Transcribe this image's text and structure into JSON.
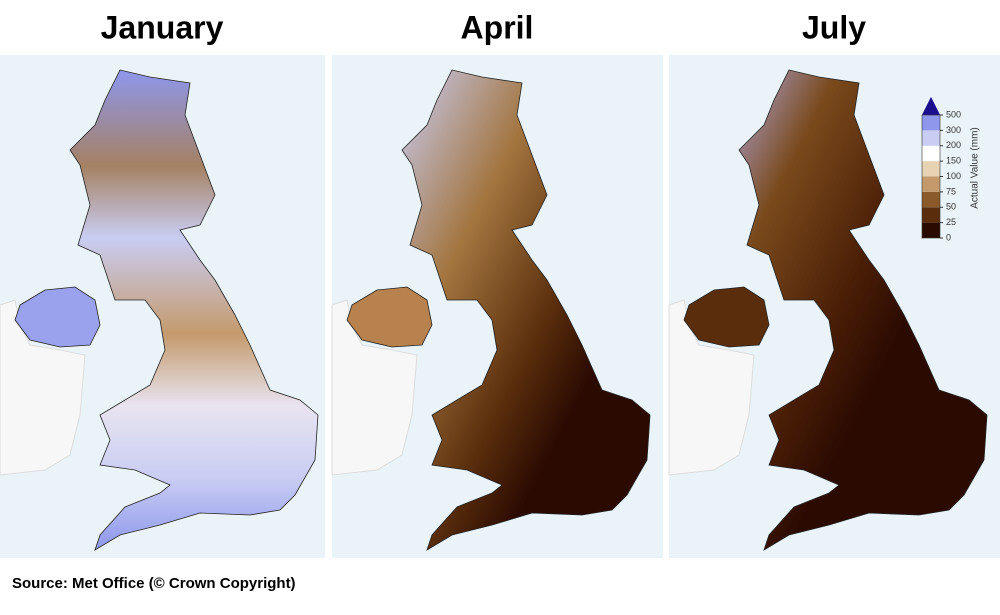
{
  "panels": [
    {
      "title": "January"
    },
    {
      "title": "April"
    },
    {
      "title": "July"
    }
  ],
  "source": "Source: Met Office (© Crown Copyright)",
  "colorbar": {
    "label": "Actual Value (mm)",
    "ticks": [
      0,
      25,
      50,
      75,
      100,
      150,
      200,
      300,
      500
    ],
    "colors": [
      "#2b0a02",
      "#5a2e0c",
      "#8a5a2b",
      "#c49a6c",
      "#e8d2b4",
      "#ffffff",
      "#c9cdf3",
      "#8e97ec",
      "#3d55e0",
      "#1a0f8c"
    ]
  }
}
